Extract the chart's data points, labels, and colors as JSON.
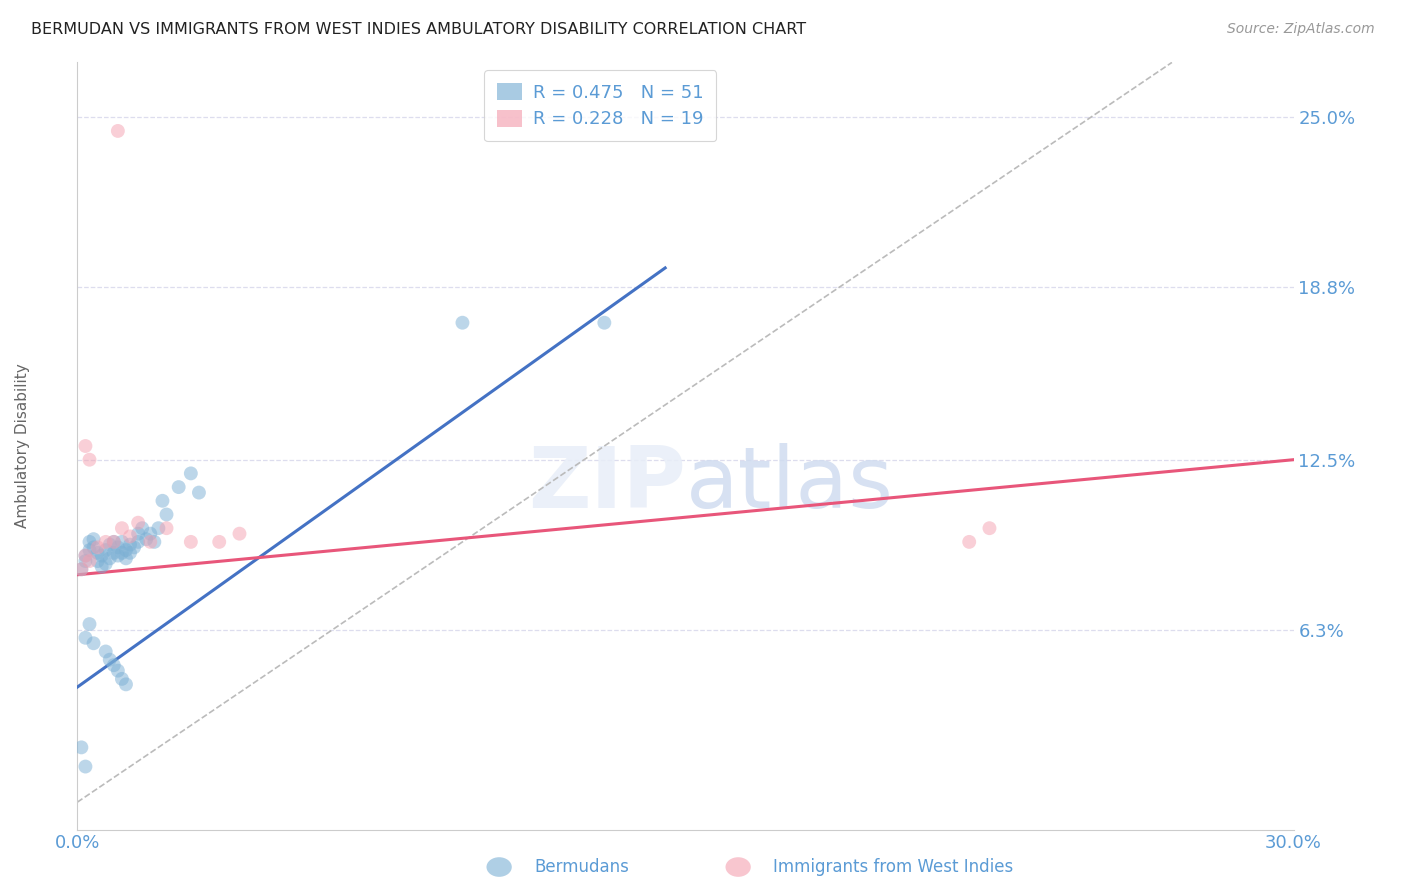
{
  "title": "BERMUDAN VS IMMIGRANTS FROM WEST INDIES AMBULATORY DISABILITY CORRELATION CHART",
  "source": "Source: ZipAtlas.com",
  "ylabel": "Ambulatory Disability",
  "xlim": [
    0.0,
    0.3
  ],
  "ylim": [
    -0.01,
    0.27
  ],
  "yticks": [
    0.063,
    0.125,
    0.188,
    0.25
  ],
  "ytick_labels": [
    "6.3%",
    "12.5%",
    "18.8%",
    "25.0%"
  ],
  "xticks": [
    0.0,
    0.05,
    0.1,
    0.15,
    0.2,
    0.25,
    0.3
  ],
  "xtick_labels": [
    "0.0%",
    "",
    "",
    "",
    "",
    "",
    "30.0%"
  ],
  "blue_color": "#7BAFD4",
  "pink_color": "#F4A0B0",
  "line_blue": "#4472C4",
  "line_pink": "#E8567A",
  "ref_line_color": "#BBBBBB",
  "grid_color": "#DDDDEE",
  "title_color": "#222222",
  "axis_label_color": "#666666",
  "tick_color": "#5B9BD5",
  "source_color": "#999999",
  "blue_scatter_x": [
    0.001,
    0.002,
    0.002,
    0.003,
    0.003,
    0.004,
    0.004,
    0.005,
    0.005,
    0.006,
    0.006,
    0.007,
    0.007,
    0.008,
    0.008,
    0.009,
    0.009,
    0.01,
    0.01,
    0.011,
    0.011,
    0.012,
    0.012,
    0.013,
    0.013,
    0.014,
    0.015,
    0.015,
    0.016,
    0.017,
    0.018,
    0.019,
    0.02,
    0.021,
    0.022,
    0.025,
    0.028,
    0.03,
    0.002,
    0.003,
    0.004,
    0.007,
    0.008,
    0.009,
    0.01,
    0.011,
    0.012,
    0.001,
    0.002,
    0.095,
    0.13
  ],
  "blue_scatter_y": [
    0.085,
    0.088,
    0.09,
    0.092,
    0.095,
    0.093,
    0.096,
    0.088,
    0.091,
    0.086,
    0.09,
    0.087,
    0.092,
    0.089,
    0.094,
    0.091,
    0.095,
    0.09,
    0.093,
    0.091,
    0.095,
    0.089,
    0.092,
    0.091,
    0.094,
    0.093,
    0.095,
    0.098,
    0.1,
    0.096,
    0.098,
    0.095,
    0.1,
    0.11,
    0.105,
    0.115,
    0.12,
    0.113,
    0.06,
    0.065,
    0.058,
    0.055,
    0.052,
    0.05,
    0.048,
    0.045,
    0.043,
    0.02,
    0.013,
    0.175,
    0.175
  ],
  "pink_scatter_x": [
    0.001,
    0.002,
    0.003,
    0.005,
    0.007,
    0.009,
    0.011,
    0.013,
    0.015,
    0.018,
    0.022,
    0.028,
    0.002,
    0.003,
    0.22,
    0.225,
    0.035,
    0.04,
    0.01
  ],
  "pink_scatter_y": [
    0.085,
    0.09,
    0.088,
    0.093,
    0.095,
    0.095,
    0.1,
    0.097,
    0.102,
    0.095,
    0.1,
    0.095,
    0.13,
    0.125,
    0.095,
    0.1,
    0.095,
    0.098,
    0.245
  ],
  "blue_line_x": [
    0.0,
    0.145
  ],
  "blue_line_y": [
    0.042,
    0.195
  ],
  "pink_line_x": [
    0.0,
    0.3
  ],
  "pink_line_y": [
    0.083,
    0.125
  ],
  "ref_line_x": [
    0.0,
    0.27
  ],
  "ref_line_y": [
    0.0,
    0.27
  ],
  "figsize": [
    14.06,
    8.92
  ],
  "dpi": 100
}
